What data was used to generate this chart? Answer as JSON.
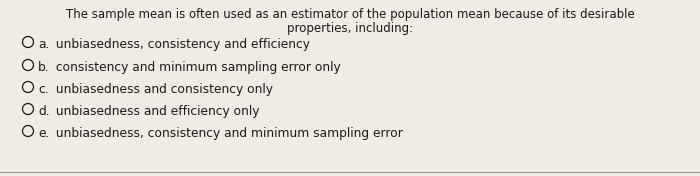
{
  "background_color": "#f0ece4",
  "question_line1": "The sample mean is often used as an estimator of the population mean because of its desirable",
  "question_line2": "properties, including:",
  "options": [
    {
      "label": "a.",
      "text": " unbiasedness, consistency and efficiency"
    },
    {
      "label": "b.",
      "text": " consistency and minimum sampling error only"
    },
    {
      "label": "c.",
      "text": " unbiasedness and consistency only"
    },
    {
      "label": "d.",
      "text": " unbiasedness and efficiency only"
    },
    {
      "label": "e.",
      "text": " unbiasedness, consistency and minimum sampling error"
    }
  ],
  "font_size_question": 8.5,
  "font_size_options": 8.8,
  "text_color": "#1a1a1a",
  "bottom_line_color": "#999999"
}
